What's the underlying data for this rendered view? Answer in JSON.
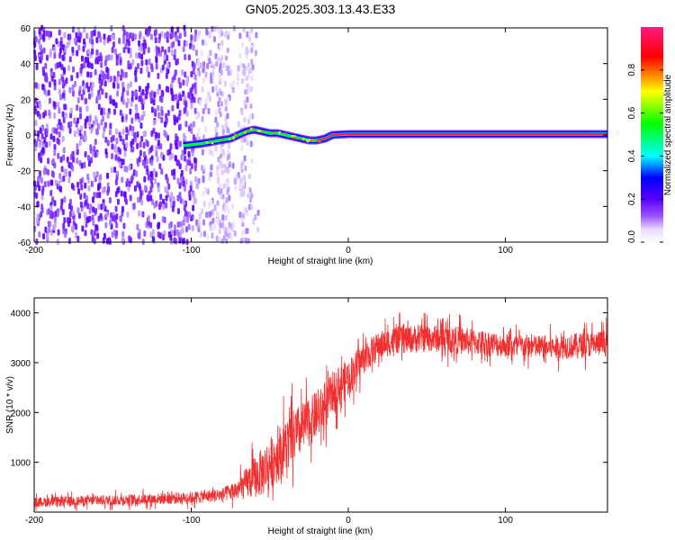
{
  "title": "GN05.2025.303.13.43.E33",
  "chart_data": [
    {
      "type": "heatmap",
      "name": "spectrogram",
      "xlabel": "Height of straight line (km)",
      "ylabel": "Frequency (Hz)",
      "xlim": [
        -200,
        165
      ],
      "ylim": [
        -60,
        60
      ],
      "x_ticks": [
        -200,
        -100,
        0,
        100
      ],
      "y_ticks": [
        60,
        40,
        20,
        0,
        -20,
        -40,
        -60
      ],
      "x_tick_labels": [
        "-200",
        "-100",
        "0",
        "100"
      ],
      "y_tick_labels": [
        "60",
        "40",
        "20",
        "0",
        "-20",
        "-40",
        "-60"
      ],
      "colorbar": {
        "label": "Normalized spectral amplitude",
        "range": [
          0,
          1
        ],
        "ticks": [
          0.0,
          0.2,
          0.4,
          0.6,
          0.8
        ],
        "tick_labels": [
          "0.0",
          "0.2",
          "0.4",
          "0.6",
          "0.8"
        ],
        "colormap": [
          "#ffffff",
          "#e8d8ff",
          "#7a00ff",
          "#0000ff",
          "#00ffff",
          "#00ff00",
          "#ffff00",
          "#ff0000",
          "#ff0080"
        ]
      },
      "noise_region": {
        "x": [
          -200,
          -57
        ],
        "y": [
          -60,
          60
        ]
      },
      "signal_trace": {
        "x": [
          -105,
          -95,
          -88,
          -82,
          -75,
          -70,
          -65,
          -60,
          -55,
          -50,
          -45,
          -40,
          -35,
          -30,
          -25,
          -20,
          -15,
          -10,
          0,
          50,
          100,
          165
        ],
        "freq": [
          -6,
          -5,
          -4,
          -3,
          -2,
          0,
          2,
          3,
          2,
          1,
          1,
          0,
          -1,
          -2,
          -3,
          -3,
          -2,
          0,
          0.5,
          0.5,
          0.5,
          0.5
        ]
      }
    },
    {
      "type": "line",
      "name": "snr",
      "xlabel": "Height of straight line (km)",
      "ylabel": "SNR (10 * v/v)",
      "xlim": [
        -200,
        165
      ],
      "ylim": [
        0,
        4300
      ],
      "x_ticks": [
        -200,
        -100,
        0,
        100
      ],
      "y_ticks": [
        1000,
        2000,
        3000,
        4000
      ],
      "x_tick_labels": [
        "-200",
        "-100",
        "0",
        "100"
      ],
      "y_tick_labels": [
        "1000",
        "2000",
        "3000",
        "4000"
      ],
      "color": "#f03030",
      "envelope": {
        "x": [
          -200,
          -150,
          -100,
          -80,
          -70,
          -62,
          -55,
          -45,
          -35,
          -25,
          -15,
          -10,
          0,
          10,
          20,
          30,
          50,
          70,
          100,
          130,
          165
        ],
        "mean": [
          200,
          240,
          290,
          350,
          450,
          650,
          800,
          1150,
          1500,
          1800,
          2100,
          2400,
          2700,
          3100,
          3350,
          3450,
          3500,
          3450,
          3350,
          3300,
          3400
        ],
        "spread": [
          140,
          150,
          170,
          200,
          300,
          550,
          700,
          800,
          800,
          700,
          650,
          600,
          550,
          450,
          400,
          400,
          400,
          400,
          350,
          350,
          380
        ]
      }
    }
  ]
}
